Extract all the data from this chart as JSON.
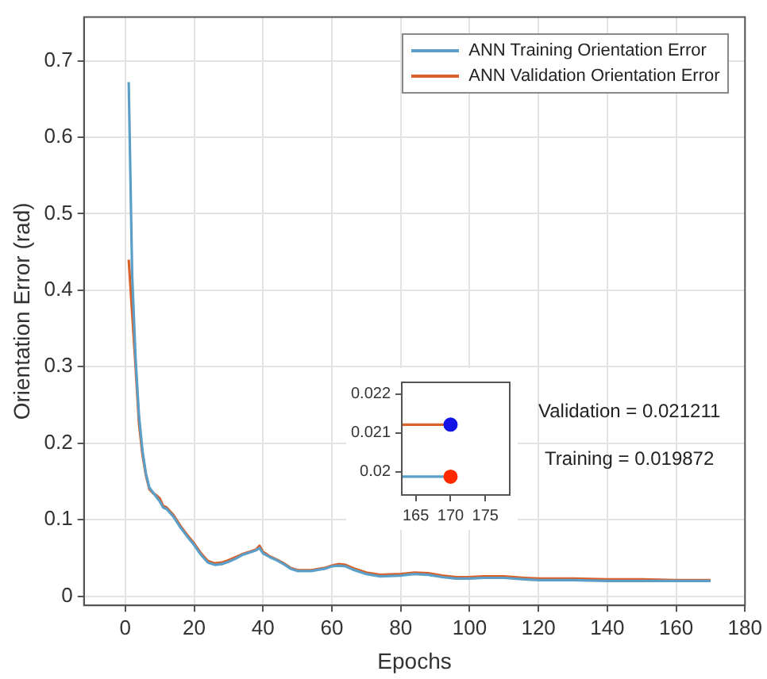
{
  "chart_data": [
    {
      "type": "line",
      "xlabel": "Epochs",
      "ylabel": "Orientation Error (rad)",
      "xlim": [
        -12,
        180
      ],
      "xticks": [
        0,
        20,
        40,
        60,
        80,
        100,
        120,
        140,
        160,
        180
      ],
      "ylim": [
        -0.012,
        0.757
      ],
      "yticks": [
        0,
        0.1,
        0.2,
        0.3,
        0.4,
        0.5,
        0.6,
        0.7
      ],
      "grid": true,
      "legend": "top right",
      "marker": "none",
      "series": [
        {
          "name": "ANN Training Orientation Error",
          "color": "#5b9fc9",
          "x": [
            1,
            2,
            3,
            4,
            5,
            6,
            7,
            8,
            9,
            10,
            11,
            12,
            14,
            16,
            18,
            20,
            22,
            24,
            26,
            28,
            30,
            32,
            34,
            36,
            38,
            39,
            40,
            42,
            44,
            46,
            48,
            50,
            54,
            58,
            60,
            62,
            64,
            66,
            70,
            74,
            80,
            84,
            88,
            92,
            96,
            100,
            104,
            110,
            116,
            120,
            130,
            140,
            150,
            160,
            170
          ],
          "values": [
            0.672,
            0.42,
            0.31,
            0.235,
            0.19,
            0.16,
            0.142,
            0.136,
            0.13,
            0.124,
            0.116,
            0.114,
            0.104,
            0.09,
            0.078,
            0.067,
            0.054,
            0.044,
            0.041,
            0.042,
            0.045,
            0.049,
            0.054,
            0.057,
            0.06,
            0.063,
            0.056,
            0.051,
            0.047,
            0.042,
            0.036,
            0.033,
            0.033,
            0.036,
            0.039,
            0.04,
            0.039,
            0.035,
            0.029,
            0.026,
            0.027,
            0.029,
            0.028,
            0.025,
            0.023,
            0.023,
            0.024,
            0.024,
            0.022,
            0.021,
            0.021,
            0.02,
            0.02,
            0.02,
            0.02
          ]
        },
        {
          "name": "ANN Validation Orientation Error",
          "color": "#d9622b",
          "x": [
            1,
            2,
            3,
            4,
            5,
            6,
            7,
            8,
            9,
            10,
            11,
            12,
            14,
            16,
            18,
            20,
            22,
            24,
            26,
            28,
            30,
            32,
            34,
            36,
            38,
            39,
            40,
            42,
            44,
            46,
            48,
            50,
            54,
            58,
            60,
            62,
            64,
            66,
            70,
            74,
            80,
            84,
            88,
            92,
            96,
            100,
            104,
            110,
            116,
            120,
            130,
            140,
            150,
            160,
            170
          ],
          "values": [
            0.44,
            0.37,
            0.3,
            0.225,
            0.185,
            0.158,
            0.14,
            0.135,
            0.132,
            0.128,
            0.118,
            0.116,
            0.106,
            0.092,
            0.08,
            0.069,
            0.056,
            0.046,
            0.043,
            0.044,
            0.047,
            0.051,
            0.055,
            0.058,
            0.061,
            0.066,
            0.058,
            0.052,
            0.048,
            0.043,
            0.037,
            0.034,
            0.034,
            0.037,
            0.04,
            0.042,
            0.041,
            0.037,
            0.031,
            0.028,
            0.029,
            0.031,
            0.03,
            0.027,
            0.025,
            0.025,
            0.026,
            0.026,
            0.024,
            0.023,
            0.023,
            0.022,
            0.022,
            0.021,
            0.021
          ]
        }
      ],
      "annotations": [
        "Validation = 0.021211",
        "Training = 0.019872"
      ]
    },
    {
      "type": "line",
      "xlim": [
        163,
        178.5
      ],
      "xticks": [
        165,
        170,
        175
      ],
      "ylim": [
        0.0194,
        0.0223
      ],
      "yticks": [
        0.02,
        0.021,
        0.022
      ],
      "grid": false,
      "legend": false,
      "series": [
        {
          "color": "#d9622b",
          "x": [
            163,
            170
          ],
          "values": [
            0.021211,
            0.021211
          ]
        },
        {
          "color": "#5b9fc9",
          "x": [
            163,
            170
          ],
          "values": [
            0.019872,
            0.019872
          ]
        },
        {
          "type": "scatter",
          "marker": "circle",
          "color": "#1414e6",
          "x": [
            170
          ],
          "values": [
            0.021211
          ]
        },
        {
          "type": "scatter",
          "marker": "circle",
          "color": "#ff2a00",
          "x": [
            170
          ],
          "values": [
            0.019872
          ]
        }
      ]
    }
  ]
}
